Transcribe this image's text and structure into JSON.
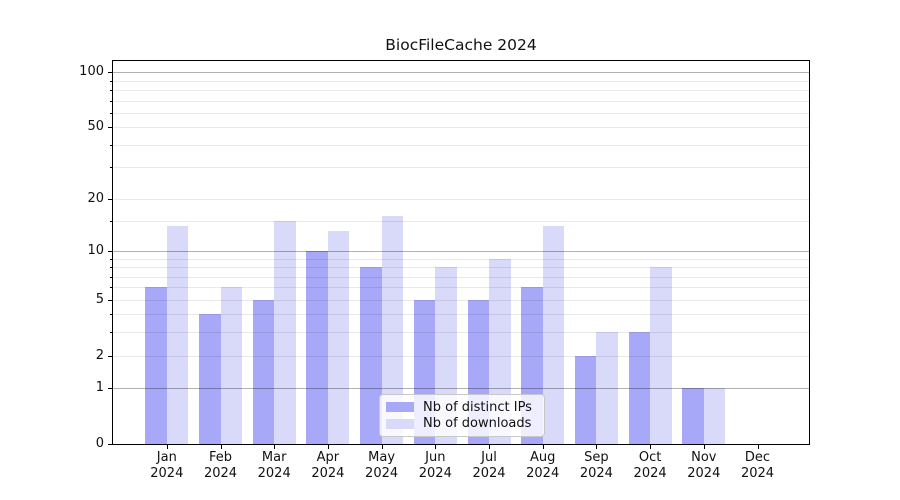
{
  "title": "BiocFileCache 2024",
  "chart_data": {
    "type": "bar",
    "title": "BiocFileCache 2024",
    "x_axis": {
      "months": [
        "Jan",
        "Feb",
        "Mar",
        "Apr",
        "May",
        "Jun",
        "Jul",
        "Aug",
        "Sep",
        "Oct",
        "Nov",
        "Dec"
      ],
      "year": "2024",
      "categories": [
        "Jan 2024",
        "Feb 2024",
        "Mar 2024",
        "Apr 2024",
        "May 2024",
        "Jun 2024",
        "Jul 2024",
        "Aug 2024",
        "Sep 2024",
        "Oct 2024",
        "Nov 2024",
        "Dec 2024"
      ]
    },
    "series": [
      {
        "name": "Nb of distinct IPs",
        "color": "#a8a8f8",
        "values": [
          6,
          4,
          5,
          10,
          8,
          5,
          5,
          6,
          2,
          3,
          1,
          0
        ]
      },
      {
        "name": "Nb of downloads",
        "color": "#d9d9fa",
        "values": [
          14,
          6,
          15,
          13,
          16,
          8,
          9,
          14,
          3,
          8,
          1,
          0
        ]
      }
    ],
    "y_axis": {
      "scale": "log1p",
      "ylim": [
        0,
        115
      ],
      "ticks": [
        0,
        1,
        2,
        5,
        10,
        20,
        50,
        100
      ],
      "major_gridlines": [
        1,
        10,
        100
      ],
      "minor_gridlines": [
        2,
        3,
        4,
        5,
        6,
        7,
        8,
        9,
        15,
        20,
        30,
        40,
        50,
        60,
        70,
        80,
        90
      ]
    },
    "legend": {
      "position": "lower center",
      "entries": [
        "Nb of distinct IPs",
        "Nb of downloads"
      ]
    },
    "grid": true
  }
}
